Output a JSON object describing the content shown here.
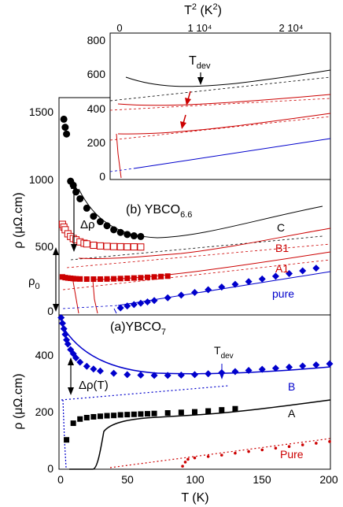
{
  "chart_data": [
    {
      "id": "b",
      "type": "scatter",
      "label": "(b) YBCO",
      "label_sub": "6.6",
      "xlabel": "",
      "ylabel": "ρ (μΩ.cm)",
      "ylabel_sub": "",
      "xlim": [
        0,
        200
      ],
      "ylim": [
        0,
        1600
      ],
      "yticks": [
        0,
        500,
        1000,
        1500
      ],
      "series": [
        {
          "name": "C",
          "color": "#000000",
          "marker": "circle",
          "x": [
            3,
            4,
            5,
            8,
            10,
            12,
            15,
            20,
            25,
            30,
            35,
            40,
            45,
            50,
            55,
            60
          ],
          "y": [
            1440,
            1380,
            1330,
            980,
            950,
            900,
            850,
            780,
            720,
            680,
            650,
            620,
            600,
            585,
            575,
            570
          ]
        },
        {
          "name": "B1",
          "color": "#cc0000",
          "marker": "open-square",
          "x": [
            2,
            3,
            4,
            6,
            8,
            10,
            12,
            15,
            18,
            20,
            25,
            30,
            35,
            40,
            45,
            50,
            55,
            60
          ],
          "y": [
            660,
            640,
            620,
            590,
            570,
            555,
            545,
            530,
            520,
            515,
            505,
            500,
            497,
            495,
            494,
            493,
            493,
            492
          ]
        },
        {
          "name": "A1",
          "color": "#cc0000",
          "marker": "filled-square",
          "x": [
            2,
            4,
            6,
            8,
            10,
            12,
            15,
            20,
            25,
            30,
            35,
            40,
            45,
            50,
            55,
            60,
            65,
            70,
            75,
            80
          ],
          "y": [
            270,
            265,
            262,
            260,
            258,
            256,
            255,
            254,
            254,
            254,
            255,
            256,
            258,
            260,
            262,
            264,
            267,
            270,
            273,
            276
          ]
        },
        {
          "name": "pure",
          "color": "#0000cc",
          "marker": "diamond",
          "x": [
            45,
            50,
            55,
            60,
            65,
            70,
            80,
            90,
            100,
            110,
            120,
            130,
            140,
            150,
            160,
            170,
            180,
            190
          ],
          "y": [
            40,
            55,
            65,
            75,
            85,
            95,
            115,
            135,
            155,
            175,
            195,
            215,
            235,
            255,
            275,
            295,
            315,
            335
          ]
        }
      ],
      "annotations": {
        "delta_rho": "Δρ",
        "rho0": "ρ",
        "rho0_sub": "0"
      }
    },
    {
      "id": "inset",
      "type": "scatter",
      "xlabel": "T² (K²)",
      "xlabel_main": "T",
      "xlabel_sup": "2",
      "xlabel_unit": " (K",
      "xlabel_unit_sup": "2",
      "xlabel_close": ")",
      "xticks": [
        "0",
        "1 10⁴",
        "2 10⁴"
      ],
      "xlim": [
        0,
        28000
      ],
      "ylim": [
        0,
        800
      ],
      "yticks": [
        0,
        200,
        400,
        600,
        800
      ],
      "annotations": {
        "tdev": "T",
        "tdev_sub": "dev"
      }
    },
    {
      "id": "a",
      "type": "scatter",
      "label": "(a)YBCO",
      "label_sub": "7",
      "xlabel": "T (K)",
      "ylabel": "ρ (μΩ.cm)",
      "xlim": [
        0,
        200
      ],
      "ylim": [
        0,
        550
      ],
      "xticks": [
        0,
        50,
        100,
        150,
        200
      ],
      "yticks": [
        0,
        200,
        400
      ],
      "series": [
        {
          "name": "B",
          "color": "#0000cc",
          "marker": "diamond",
          "x": [
            1,
            2,
            3,
            4,
            5,
            6,
            8,
            10,
            12,
            15,
            20,
            25,
            30,
            40,
            50,
            60,
            70,
            80,
            90,
            100,
            110,
            120,
            130,
            140,
            150,
            160,
            170,
            180,
            190,
            200
          ],
          "y": [
            540,
            520,
            500,
            480,
            460,
            445,
            425,
            410,
            395,
            380,
            365,
            355,
            348,
            340,
            335,
            333,
            332,
            332,
            333,
            335,
            338,
            342,
            346,
            350,
            354,
            358,
            362,
            366,
            370,
            374
          ]
        },
        {
          "name": "A",
          "color": "#000000",
          "marker": "filled-square",
          "x": [
            5,
            10,
            15,
            20,
            25,
            30,
            35,
            40,
            45,
            50,
            55,
            60,
            65,
            70,
            80,
            90,
            100,
            110,
            120,
            130
          ],
          "y": [
            100,
            160,
            175,
            180,
            183,
            185,
            187,
            188,
            190,
            191,
            192,
            193,
            194,
            195,
            197,
            199,
            201,
            204,
            208,
            212
          ]
        },
        {
          "name": "Pure",
          "color": "#cc0000",
          "marker": "dot",
          "x": [
            91,
            93,
            95,
            100,
            110,
            120,
            130,
            140,
            150,
            160,
            170,
            180,
            190,
            200
          ],
          "y": [
            5,
            20,
            30,
            35,
            40,
            45,
            52,
            58,
            64,
            70,
            76,
            82,
            88,
            94
          ]
        }
      ],
      "annotations": {
        "delta_rho": "Δρ(T)",
        "tdev": "T",
        "tdev_sub": "dev"
      }
    }
  ]
}
